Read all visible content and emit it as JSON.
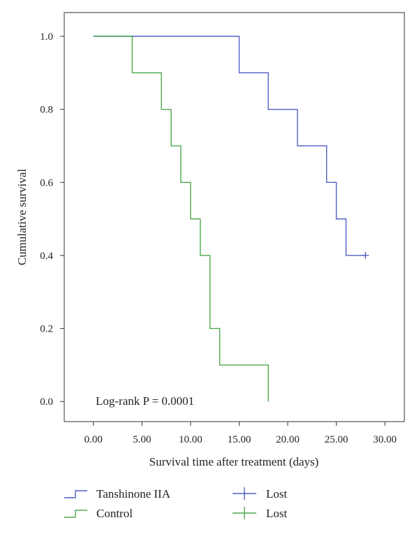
{
  "chart_data": {
    "type": "line",
    "step": true,
    "xlabel": "Survival time after treatment (days)",
    "ylabel": "Cumulative survival",
    "xlim": [
      -3,
      32
    ],
    "ylim": [
      -0.055,
      1.065
    ],
    "x_ticks": [
      0,
      5,
      10,
      15,
      20,
      25,
      30
    ],
    "x_tick_labels": [
      "0.00",
      "5.00",
      "10.00",
      "15.00",
      "20.00",
      "25.00",
      "30.00"
    ],
    "y_ticks": [
      0,
      0.2,
      0.4,
      0.6,
      0.8,
      1.0
    ],
    "y_tick_labels": [
      "0.0",
      "0.2",
      "0.4",
      "0.6",
      "0.8",
      "1.0"
    ],
    "grid": false,
    "annotation": "Log-rank P = 0.0001",
    "series": [
      {
        "name": "Tanshinone IIA",
        "color": "#4f5fc4",
        "steps": [
          [
            0,
            1.0
          ],
          [
            15,
            0.9
          ],
          [
            18,
            0.8
          ],
          [
            21,
            0.7
          ],
          [
            24,
            0.6
          ],
          [
            25,
            0.5
          ],
          [
            26,
            0.4
          ]
        ],
        "end_x": 28,
        "censored": [
          [
            28,
            0.4
          ]
        ],
        "drop_to_zero": false
      },
      {
        "name": "Control",
        "color": "#4ea84e",
        "steps": [
          [
            0,
            1.0
          ],
          [
            4,
            0.9
          ],
          [
            7,
            0.8
          ],
          [
            8,
            0.7
          ],
          [
            9,
            0.6
          ],
          [
            10,
            0.5
          ],
          [
            11,
            0.4
          ],
          [
            12,
            0.2
          ],
          [
            13,
            0.1
          ]
        ],
        "end_x": 18,
        "censored": [],
        "drop_to_zero": true
      }
    ],
    "legend": {
      "placement": "bottom",
      "entries": [
        {
          "label": "Tanshinone IIA",
          "color": "#4f5fc4",
          "symbol": "step"
        },
        {
          "label": "Control",
          "color": "#4ea84e",
          "symbol": "step"
        },
        {
          "label": "Lost",
          "color": "#4f5fc4",
          "symbol": "cross"
        },
        {
          "label": "Lost",
          "color": "#4ea84e",
          "symbol": "cross"
        }
      ]
    }
  }
}
